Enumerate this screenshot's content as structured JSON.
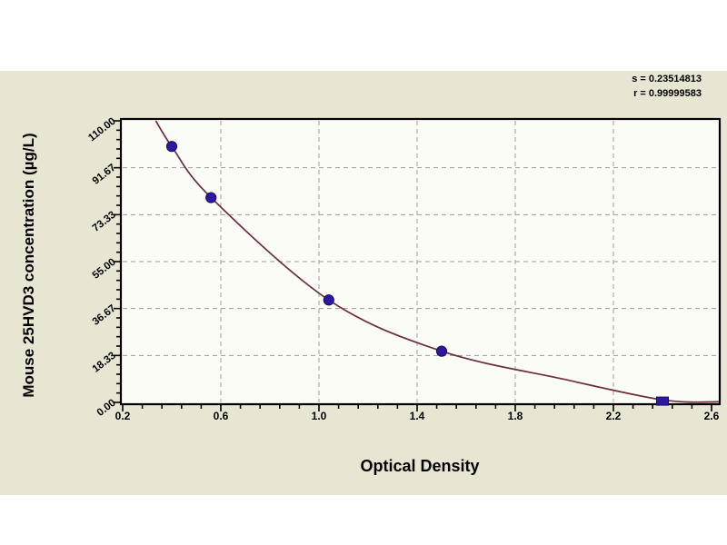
{
  "figure": {
    "background": "#ffffff",
    "panel_color": "#e8e5d2"
  },
  "stats_block": {
    "s_line": "s = 0.23514813",
    "r_line": "r = 0.99999583"
  },
  "chart_data": {
    "type": "scatter",
    "subtype": "ELISA standard curve with fitted line",
    "title": "",
    "xlabel": "Optical Density",
    "ylabel": "Mouse 25HVD3 concentration (µg/L)",
    "annotations": [
      "s = 0.23514813",
      "r = 0.99999583"
    ],
    "xlim": [
      0.2,
      2.6
    ],
    "ylim": [
      0,
      110
    ],
    "x_tick_values": [
      0.2,
      0.6,
      1.0,
      1.4,
      1.8,
      2.2,
      2.6
    ],
    "x_tick_labels": [
      "0.2",
      "0.6",
      "1.0",
      "1.4",
      "1.8",
      "2.2",
      "2.6"
    ],
    "y_tick_values": [
      0,
      18.33,
      36.67,
      55.0,
      73.33,
      91.67,
      110.0
    ],
    "y_tick_labels": [
      "0.00",
      "18.33",
      "36.67",
      "55.00",
      "73.33",
      "91.67",
      "110.00"
    ],
    "minor_ticks_per_interval": 4,
    "grid": "dashed",
    "legend_position": "none",
    "series": [
      {
        "name": "standards",
        "points": [
          [
            0.4,
            100
          ],
          [
            0.56,
            80
          ],
          [
            1.04,
            40
          ],
          [
            1.5,
            20
          ],
          [
            2.4,
            0.5
          ]
        ],
        "marker_shapes": [
          "circle",
          "circle",
          "circle",
          "circle",
          "square"
        ],
        "curve_anchors": [
          [
            0.335,
            110
          ],
          [
            0.4,
            100
          ],
          [
            0.56,
            80
          ],
          [
            1.04,
            40
          ],
          [
            1.5,
            20
          ],
          [
            2.0,
            9
          ],
          [
            2.4,
            1
          ],
          [
            2.63,
            0.2
          ]
        ]
      }
    ],
    "colors": {
      "panel": "#e8e5d2",
      "plot_bg": "#fcfcf7",
      "axis": "#000000",
      "grid": "#9b9b9b",
      "curve": "#6e2f36",
      "marker": "#2e18a0",
      "marker_edge": "#150a5e",
      "text": "#000000"
    }
  }
}
